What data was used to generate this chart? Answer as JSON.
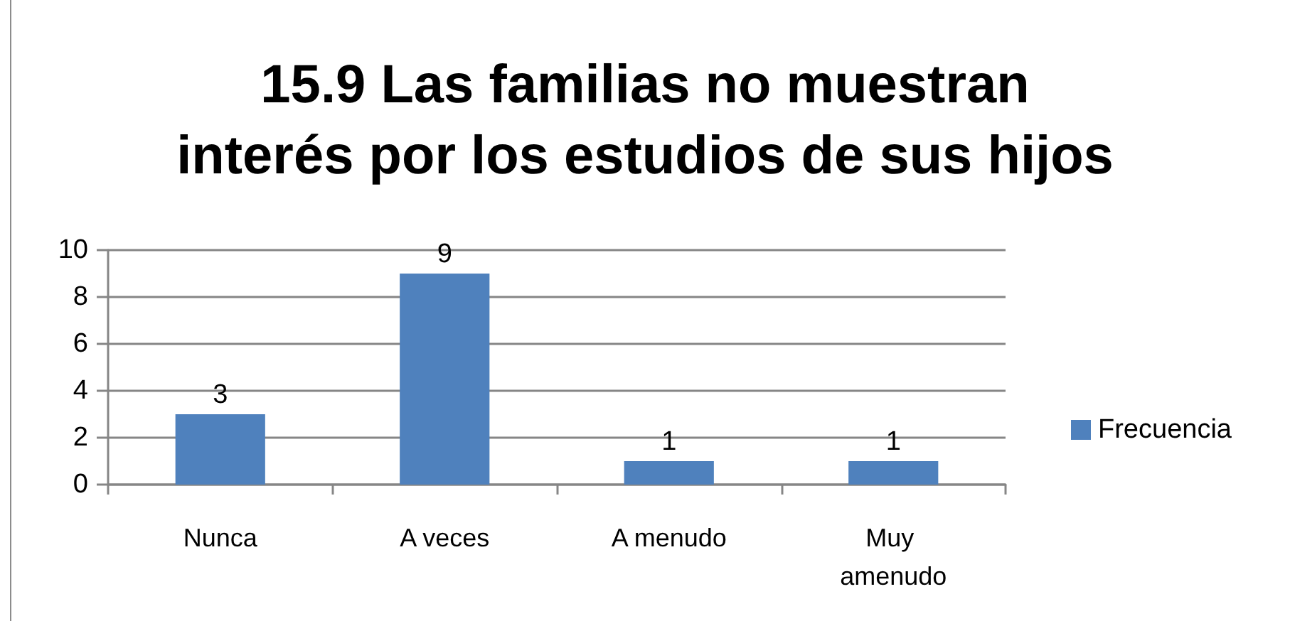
{
  "chart_data": {
    "type": "bar",
    "title": "15.9 Las familias no muestran interés por los estudios de sus hijos",
    "categories": [
      "Nunca",
      "A veces",
      "A menudo",
      "Muy amenudo"
    ],
    "series": [
      {
        "name": "Frecuencia",
        "color": "#4f81bd",
        "values": [
          3,
          9,
          1,
          1
        ]
      }
    ],
    "ylim": [
      0,
      10
    ],
    "yticks": [
      0,
      2,
      4,
      6,
      8,
      10
    ],
    "grid": "y",
    "legend": "right",
    "data_labels": true
  }
}
